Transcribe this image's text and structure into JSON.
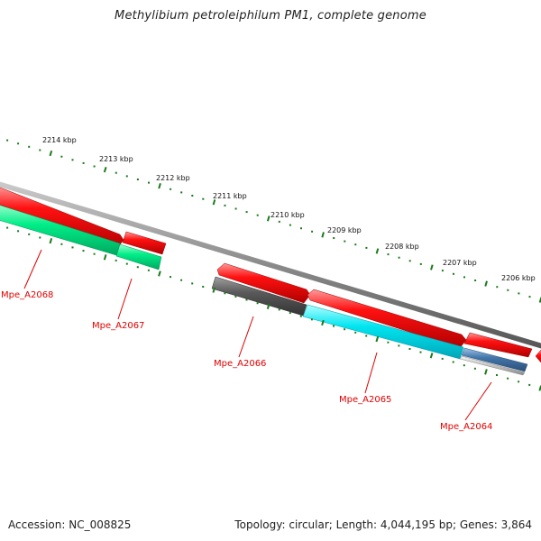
{
  "title": "Methylibium petroleiphilum PM1, complete genome",
  "scale_labels": [
    "2214 kbp",
    "2213 kbp",
    "2212 kbp",
    "2211 kbp",
    "2210 kbp",
    "2209 kbp",
    "2208 kbp",
    "2207 kbp",
    "2206 kbp"
  ],
  "genes": [
    {
      "label": "Mpe_A2068",
      "color": "#00ee88"
    },
    {
      "label": "Mpe_A2067",
      "color": "#00ee88"
    },
    {
      "label": "Mpe_A2066",
      "color": "#555555"
    },
    {
      "label": "Mpe_A2065",
      "color": "#00e5f0"
    },
    {
      "label": "Mpe_A2064",
      "color": "#4477aa"
    }
  ],
  "cds_color": "#ee0000",
  "backbone_color": "#888888",
  "footer": {
    "accession": "Accession: NC_008825",
    "topology": "Topology: circular; Length: 4,044,195 bp; Genes: 3,864"
  }
}
